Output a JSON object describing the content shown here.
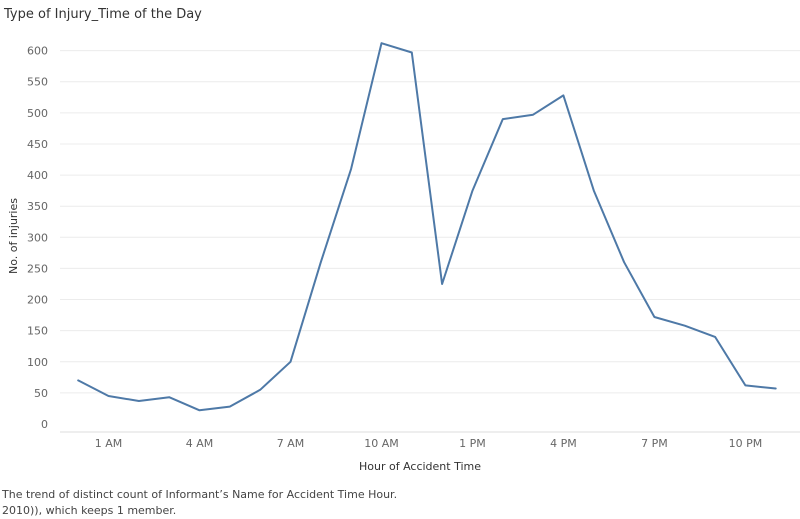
{
  "title": "Type of Injury_Time of the Day",
  "caption": {
    "line1": "The trend of distinct count of Informant’s  Name for Accident Time Hour.",
    "line2": "2010)), which keeps 1 member."
  },
  "colors": {
    "line": "#4e79a7",
    "grid": "#ececec",
    "text": "#333333",
    "tick": "#666666"
  },
  "chart_data": {
    "type": "line",
    "title": "Type of Injury_Time of the Day",
    "xlabel": "Hour of Accident Time",
    "ylabel": "No. of injuries",
    "ylim": [
      0,
      630
    ],
    "yticks": [
      0,
      50,
      100,
      150,
      200,
      250,
      300,
      350,
      400,
      450,
      500,
      550,
      600
    ],
    "xlim": [
      -0.6,
      23.8
    ],
    "xticks": [
      {
        "hour": 1,
        "label": "1 AM"
      },
      {
        "hour": 4,
        "label": "4 AM"
      },
      {
        "hour": 7,
        "label": "7 AM"
      },
      {
        "hour": 10,
        "label": "10 AM"
      },
      {
        "hour": 13,
        "label": "1 PM"
      },
      {
        "hour": 16,
        "label": "4 PM"
      },
      {
        "hour": 19,
        "label": "7 PM"
      },
      {
        "hour": 22,
        "label": "10 PM"
      }
    ],
    "grid": true,
    "series": [
      {
        "x": [
          0,
          1,
          2,
          3,
          4,
          5,
          6,
          7,
          8,
          9,
          10,
          11,
          12,
          13,
          14,
          15,
          16,
          17,
          18,
          19,
          20,
          21,
          22,
          23
        ],
        "values": [
          70,
          45,
          37,
          43,
          22,
          28,
          55,
          100,
          260,
          410,
          612,
          597,
          225,
          375,
          490,
          497,
          528,
          375,
          260,
          172,
          158,
          140,
          62,
          57
        ]
      }
    ]
  }
}
